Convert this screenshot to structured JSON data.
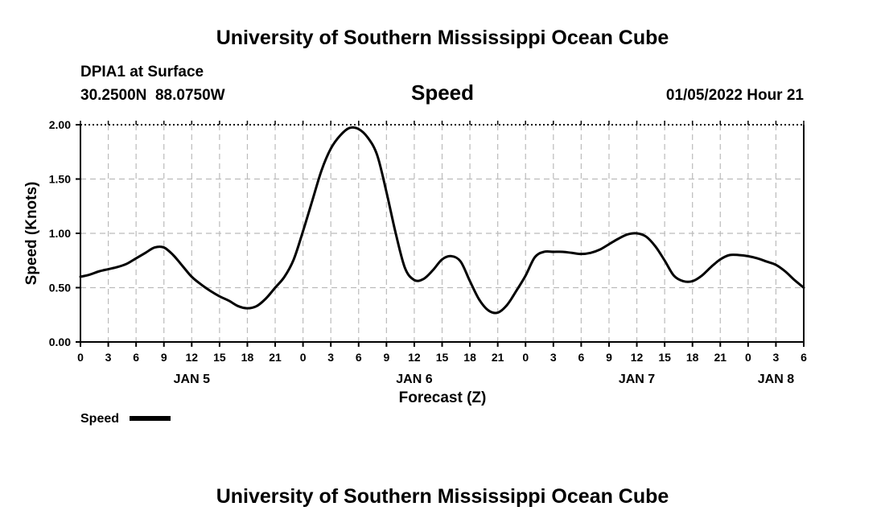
{
  "header": {
    "title_top": "University of Southern Mississippi Ocean Cube",
    "title_bottom": "University of Southern Mississippi Ocean Cube",
    "station": "DPIA1 at Surface",
    "coords": "30.2500N  88.0750W",
    "variable": "Speed",
    "datetime": "01/05/2022 Hour 21"
  },
  "colors": {
    "line": "#000000",
    "grid": "#bbbbbb"
  },
  "chart_data": {
    "type": "line",
    "title": "Speed",
    "xlabel": "Forecast (Z)",
    "ylabel": "Speed (Knots)",
    "ylim": [
      0,
      2.0
    ],
    "xlim": [
      0,
      78
    ],
    "grid": true,
    "x_ticks": [
      0,
      3,
      6,
      9,
      12,
      15,
      18,
      21,
      24,
      27,
      30,
      33,
      36,
      39,
      42,
      45,
      48,
      51,
      54,
      57,
      60,
      63,
      66,
      69,
      72,
      75,
      78
    ],
    "x_tick_labels": [
      "0",
      "3",
      "6",
      "9",
      "12",
      "15",
      "18",
      "21",
      "0",
      "3",
      "6",
      "9",
      "12",
      "15",
      "18",
      "21",
      "0",
      "3",
      "6",
      "9",
      "12",
      "15",
      "18",
      "21",
      "0",
      "3",
      "6"
    ],
    "y_ticks": [
      0,
      0.5,
      1.0,
      1.5,
      2.0
    ],
    "y_tick_labels": [
      "0.00",
      "0.50",
      "1.00",
      "1.50",
      "2.00"
    ],
    "day_labels": [
      {
        "label": "JAN 5",
        "x": 12
      },
      {
        "label": "JAN 6",
        "x": 36
      },
      {
        "label": "JAN 7",
        "x": 60
      },
      {
        "label": "JAN 8",
        "x": 75
      }
    ],
    "series": [
      {
        "name": "Speed",
        "x": [
          0,
          1,
          2,
          3,
          4,
          5,
          6,
          7,
          8,
          9,
          10,
          11,
          12,
          13,
          14,
          15,
          16,
          17,
          18,
          19,
          20,
          21,
          22,
          23,
          24,
          25,
          26,
          27,
          28,
          29,
          30,
          31,
          32,
          33,
          34,
          35,
          36,
          37,
          38,
          39,
          40,
          41,
          42,
          43,
          44,
          45,
          46,
          47,
          48,
          49,
          50,
          51,
          52,
          53,
          54,
          55,
          56,
          57,
          58,
          59,
          60,
          61,
          62,
          63,
          64,
          65,
          66,
          67,
          68,
          69,
          70,
          71,
          72,
          73,
          74,
          75,
          76,
          77,
          78
        ],
        "values": [
          0.6,
          0.62,
          0.65,
          0.67,
          0.69,
          0.72,
          0.77,
          0.82,
          0.87,
          0.87,
          0.8,
          0.7,
          0.6,
          0.53,
          0.47,
          0.42,
          0.38,
          0.33,
          0.31,
          0.33,
          0.4,
          0.5,
          0.6,
          0.76,
          1.02,
          1.3,
          1.58,
          1.78,
          1.9,
          1.97,
          1.96,
          1.88,
          1.72,
          1.38,
          1.0,
          0.68,
          0.57,
          0.58,
          0.66,
          0.76,
          0.79,
          0.74,
          0.56,
          0.39,
          0.29,
          0.27,
          0.34,
          0.47,
          0.61,
          0.78,
          0.83,
          0.83,
          0.83,
          0.82,
          0.81,
          0.82,
          0.85,
          0.9,
          0.95,
          0.99,
          1.0,
          0.97,
          0.88,
          0.75,
          0.61,
          0.56,
          0.56,
          0.61,
          0.69,
          0.76,
          0.8,
          0.8,
          0.79,
          0.77,
          0.74,
          0.71,
          0.65,
          0.57,
          0.5
        ]
      }
    ],
    "legend": {
      "label": "Speed",
      "position": "bottom-left"
    }
  }
}
